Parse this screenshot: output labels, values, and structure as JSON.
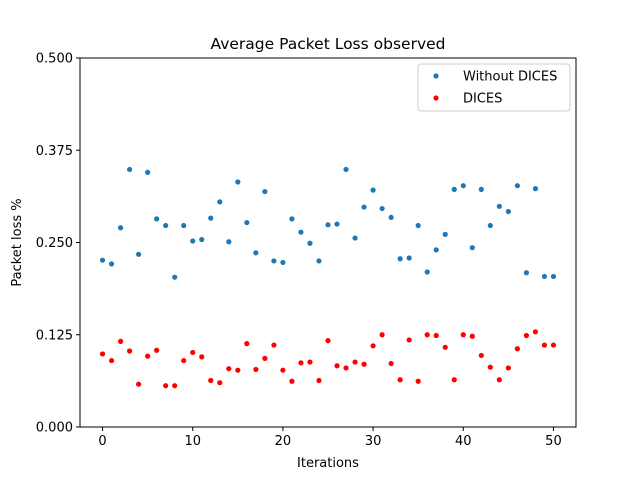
{
  "chart_data": {
    "type": "scatter",
    "title": "Average Packet Loss observed",
    "xlabel": "Iterations",
    "ylabel": "Packet loss %",
    "xlim": [
      -2.5,
      52.5
    ],
    "ylim": [
      0,
      0.5
    ],
    "xticks": [
      0,
      10,
      20,
      30,
      40,
      50
    ],
    "xtick_labels": [
      "0",
      "10",
      "20",
      "30",
      "40",
      "50"
    ],
    "yticks": [
      0,
      0.125,
      0.25,
      0.375,
      0.5
    ],
    "ytick_labels": [
      "0.000",
      "0.125",
      "0.250",
      "0.375",
      "0.500"
    ],
    "grid": false,
    "legend_position": "top-right",
    "x": [
      0,
      1,
      2,
      3,
      4,
      5,
      6,
      7,
      8,
      9,
      10,
      11,
      12,
      13,
      14,
      15,
      16,
      17,
      18,
      19,
      20,
      21,
      22,
      23,
      24,
      25,
      26,
      27,
      28,
      29,
      30,
      31,
      32,
      33,
      34,
      35,
      36,
      37,
      38,
      39,
      40,
      41,
      42,
      43,
      44,
      45,
      46,
      47,
      48,
      49,
      50
    ],
    "series": [
      {
        "name": "Without DICES",
        "color": "#1f77b4",
        "values": [
          0.226,
          0.221,
          0.27,
          0.349,
          0.234,
          0.345,
          0.282,
          0.273,
          0.203,
          0.273,
          0.252,
          0.254,
          0.283,
          0.305,
          0.251,
          0.332,
          0.277,
          0.236,
          0.319,
          0.225,
          0.223,
          0.282,
          0.264,
          0.249,
          0.225,
          0.274,
          0.275,
          0.349,
          0.256,
          0.298,
          0.321,
          0.296,
          0.284,
          0.228,
          0.229,
          0.273,
          0.21,
          0.24,
          0.261,
          0.322,
          0.327,
          0.243,
          0.322,
          0.273,
          0.299,
          0.292,
          0.327,
          0.209,
          0.323,
          0.204,
          0.204
        ]
      },
      {
        "name": "DICES",
        "color": "#ff0000",
        "values": [
          0.099,
          0.09,
          0.116,
          0.103,
          0.058,
          0.096,
          0.104,
          0.056,
          0.056,
          0.09,
          0.101,
          0.095,
          0.063,
          0.06,
          0.079,
          0.077,
          0.113,
          0.078,
          0.093,
          0.111,
          0.077,
          0.062,
          0.087,
          0.088,
          0.063,
          0.117,
          0.083,
          0.08,
          0.088,
          0.085,
          0.11,
          0.125,
          0.086,
          0.064,
          0.118,
          0.062,
          0.125,
          0.124,
          0.108,
          0.064,
          0.125,
          0.123,
          0.097,
          0.081,
          0.064,
          0.08,
          0.106,
          0.124,
          0.129,
          0.111,
          0.111
        ]
      }
    ]
  }
}
